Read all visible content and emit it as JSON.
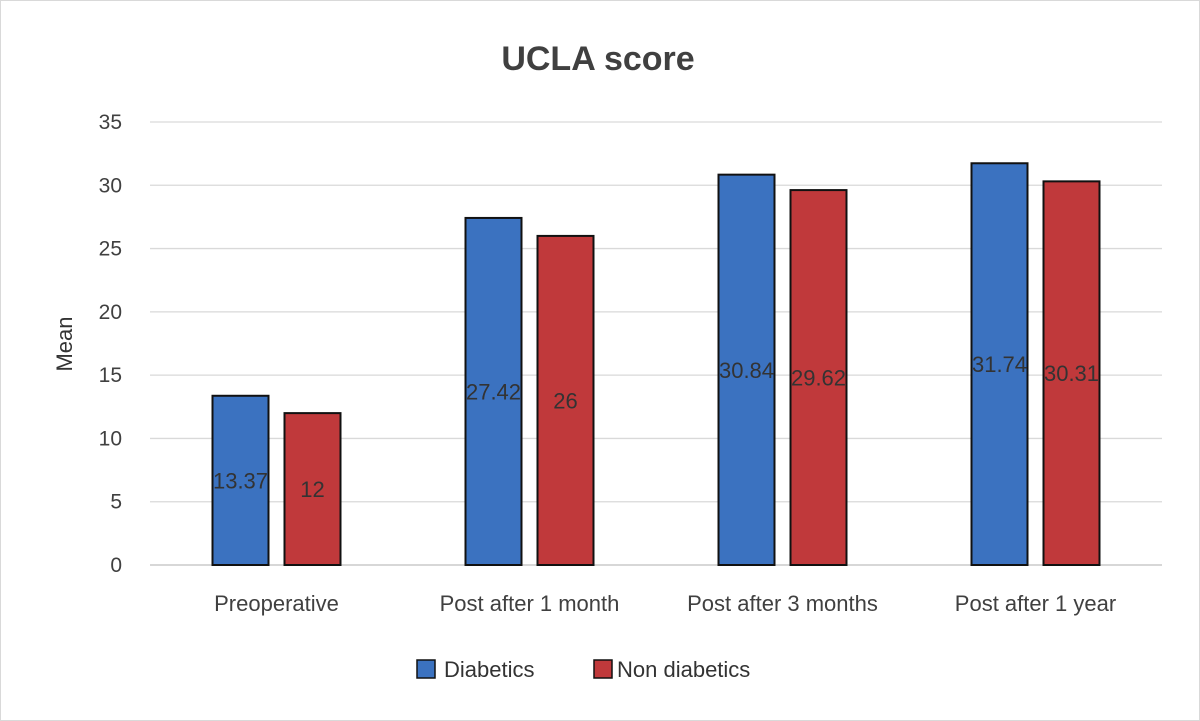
{
  "chart_data": {
    "type": "bar",
    "title": "UCLA score",
    "xlabel": "",
    "ylabel": "Mean",
    "ylim": [
      0,
      35
    ],
    "yticks": [
      0,
      5,
      10,
      15,
      20,
      25,
      30,
      35
    ],
    "grid": true,
    "legend_position": "bottom",
    "categories": [
      "Preoperative",
      "Post after 1 month",
      "Post after 3 months",
      "Post after 1 year"
    ],
    "series": [
      {
        "name": "Diabetics",
        "color": "#3b72c0",
        "values": [
          13.37,
          27.42,
          30.84,
          31.74
        ],
        "labels": [
          "13.37",
          "27.42",
          "30.84",
          "31.74"
        ]
      },
      {
        "name": "Non diabetics",
        "color": "#c0393b",
        "values": [
          12,
          26,
          29.62,
          30.31
        ],
        "labels": [
          "12",
          "26",
          "29.62",
          "30.31"
        ]
      }
    ]
  }
}
